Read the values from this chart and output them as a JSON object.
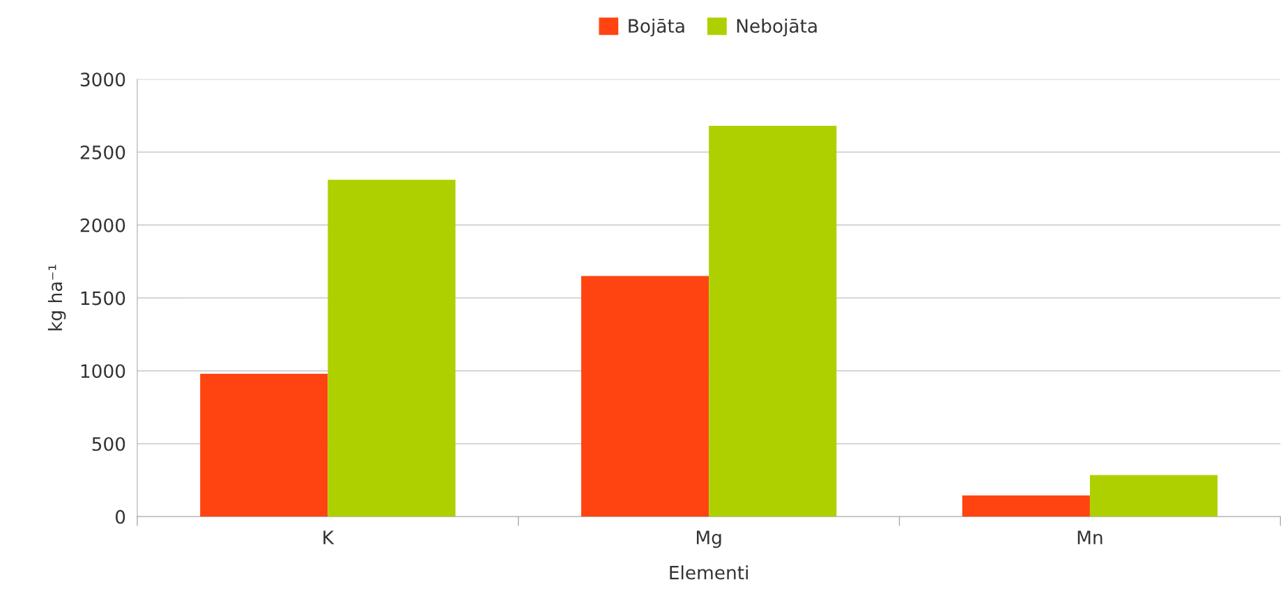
{
  "chart_data": {
    "type": "bar",
    "xlabel": "Elementi",
    "ylabel": "kg ha⁻¹",
    "categories": [
      "K",
      "Mg",
      "Mn"
    ],
    "series": [
      {
        "name": "Bojāta",
        "color": "#ff4411",
        "values": [
          980,
          1650,
          145
        ]
      },
      {
        "name": "Nebojāta",
        "color": "#aed000",
        "values": [
          2310,
          2680,
          285
        ]
      }
    ],
    "ylim": [
      0,
      3000
    ],
    "yticks": [
      0,
      500,
      1000,
      1500,
      2000,
      2500,
      3000
    ],
    "grid": "y",
    "legend": "top"
  }
}
